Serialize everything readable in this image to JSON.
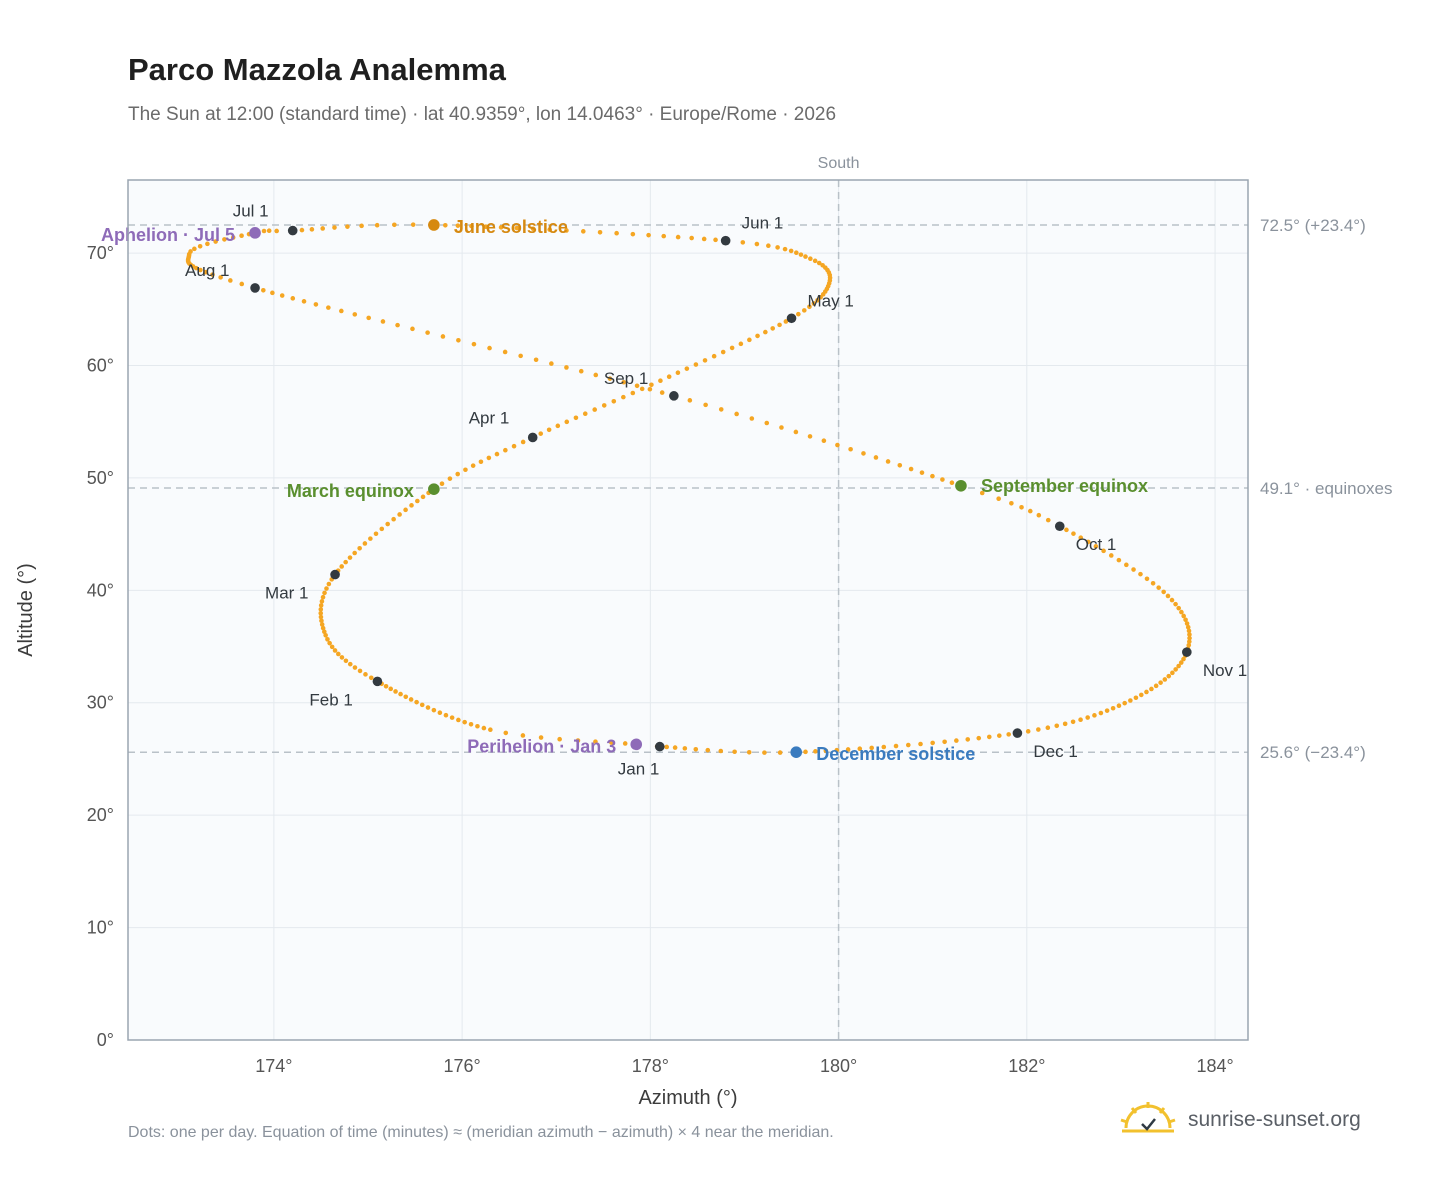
{
  "title": "Parco Mazzola Analemma",
  "subtitle": "The Sun at 12:00 (standard time) · lat 40.9359°, lon 14.0463° · Europe/Rome · 2026",
  "footnote": "Dots: one per day. Equation of time (minutes) ≈ (meridian azimuth − azimuth) × 4 near the meridian.",
  "brand": {
    "name": "sunrise-sunset.org",
    "icon": "sun-icon"
  },
  "chart_data": {
    "type": "scatter",
    "xlabel": "Azimuth (°)",
    "ylabel": "Altitude (°)",
    "xlim": [
      172.45,
      184.35
    ],
    "ylim": [
      0,
      76.5
    ],
    "x_ticks": [
      174,
      176,
      178,
      180,
      182,
      184
    ],
    "x_tick_labels": [
      "174°",
      "176°",
      "178°",
      "180°",
      "182°",
      "184°"
    ],
    "y_ticks": [
      0,
      10,
      20,
      30,
      40,
      50,
      60,
      70
    ],
    "y_tick_labels": [
      "0°",
      "10°",
      "20°",
      "30°",
      "40°",
      "50°",
      "60°",
      "70°"
    ],
    "grid": true,
    "colors": {
      "daily": "#f5a623",
      "month": "#333a40",
      "june": "#d68910",
      "equinox": "#5a8f2f",
      "december": "#3a7bbf",
      "apsis": "#8e6bb8",
      "reference": "#b9c1c8"
    },
    "reference_lines": [
      {
        "axis": "x",
        "value": 180,
        "label": "South"
      },
      {
        "axis": "y",
        "value": 72.5,
        "label": "72.5° (+23.4°)"
      },
      {
        "axis": "y",
        "value": 49.1,
        "label": "49.1° · equinoxes"
      },
      {
        "axis": "y",
        "value": 25.6,
        "label": "25.6° (−23.4°)"
      }
    ],
    "months": [
      {
        "label": "Jan 1",
        "x": 178.1,
        "y": 26.1
      },
      {
        "label": "Feb 1",
        "x": 175.1,
        "y": 31.9
      },
      {
        "label": "Mar 1",
        "x": 174.65,
        "y": 41.4
      },
      {
        "label": "Apr 1",
        "x": 176.75,
        "y": 53.6
      },
      {
        "label": "May 1",
        "x": 179.5,
        "y": 64.2
      },
      {
        "label": "Jun 1",
        "x": 178.8,
        "y": 71.1
      },
      {
        "label": "Jul 1",
        "x": 174.2,
        "y": 72.0
      },
      {
        "label": "Aug 1",
        "x": 173.8,
        "y": 66.9
      },
      {
        "label": "Sep 1",
        "x": 178.25,
        "y": 57.3
      },
      {
        "label": "Oct 1",
        "x": 182.35,
        "y": 45.7
      },
      {
        "label": "Nov 1",
        "x": 183.7,
        "y": 34.5
      },
      {
        "label": "Dec 1",
        "x": 181.9,
        "y": 27.3
      }
    ],
    "events": [
      {
        "label": "June solstice",
        "x": 175.7,
        "y": 72.5,
        "kind": "june"
      },
      {
        "label": "March equinox",
        "x": 175.7,
        "y": 49.0,
        "kind": "equinox"
      },
      {
        "label": "September equinox",
        "x": 181.3,
        "y": 49.3,
        "kind": "equinox"
      },
      {
        "label": "December solstice",
        "x": 179.55,
        "y": 25.6,
        "kind": "december"
      },
      {
        "label": "Aphelion · Jul 5",
        "x": 173.8,
        "y": 71.8,
        "kind": "apsis"
      },
      {
        "label": "Perihelion · Jan 3",
        "x": 177.85,
        "y": 26.3,
        "kind": "apsis"
      }
    ],
    "path_keypoints": [
      [
        1,
        178.1,
        26.1
      ],
      [
        3,
        177.85,
        26.3
      ],
      [
        12,
        176.3,
        27.6
      ],
      [
        32,
        175.1,
        31.9
      ],
      [
        45,
        174.55,
        36.0
      ],
      [
        60,
        174.65,
        41.4
      ],
      [
        79,
        175.7,
        49.0
      ],
      [
        91,
        176.75,
        53.6
      ],
      [
        106,
        178.2,
        59.0
      ],
      [
        121,
        179.5,
        64.2
      ],
      [
        132,
        179.9,
        67.3
      ],
      [
        142,
        179.7,
        69.5
      ],
      [
        152,
        178.8,
        71.1
      ],
      [
        172,
        175.7,
        72.5
      ],
      [
        182,
        174.2,
        72.0
      ],
      [
        186,
        173.8,
        71.8
      ],
      [
        196,
        173.1,
        69.9
      ],
      [
        213,
        173.8,
        66.9
      ],
      [
        244,
        178.25,
        57.3
      ],
      [
        266,
        181.3,
        49.3
      ],
      [
        274,
        182.35,
        45.7
      ],
      [
        290,
        183.5,
        39.5
      ],
      [
        305,
        183.7,
        34.5
      ],
      [
        320,
        183.1,
        30.2
      ],
      [
        335,
        181.9,
        27.3
      ],
      [
        355,
        179.55,
        25.6
      ],
      [
        366,
        178.1,
        26.1
      ]
    ]
  }
}
